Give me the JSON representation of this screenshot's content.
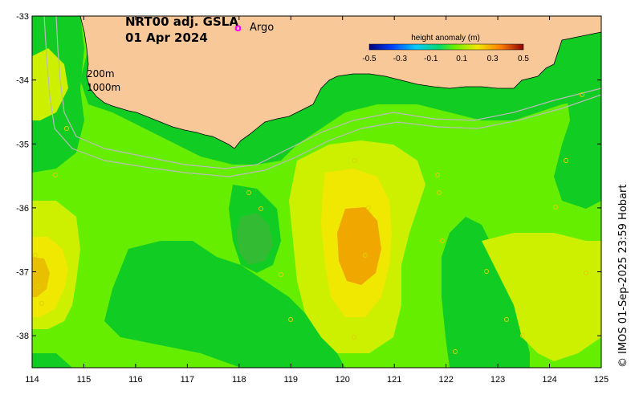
{
  "map": {
    "title_line1": "NRT00 adj. GSLA",
    "title_line2": "01 Apr 2024",
    "argo_marker": "o",
    "argo_label": "Argo",
    "isobath_200": "200m",
    "isobath_1000": "1000m",
    "credit": "© IMOS 01-Sep-2025 23:59 Hobart",
    "x_ticks": [
      "114",
      "115",
      "116",
      "117",
      "118",
      "119",
      "120",
      "121",
      "122",
      "123",
      "124",
      "125"
    ],
    "y_ticks": [
      "-33",
      "-34",
      "-35",
      "-36",
      "-37",
      "-38"
    ],
    "lon_range": [
      114,
      125
    ],
    "lat_range": [
      -38.5,
      -33
    ],
    "colorbar": {
      "title": "height anomaly (m)",
      "ticks": [
        "-0.5",
        "-0.3",
        "-0.1",
        "0.1",
        "0.3",
        "0.5"
      ],
      "range": [
        -0.5,
        0.5
      ]
    },
    "colors": {
      "land": "#f8c898",
      "light_green": "#66ee00",
      "green": "#11cc22",
      "dark_green": "#009944",
      "yellow_green": "#ccf000",
      "yellow": "#f0e800",
      "orange": "#f0a800",
      "argo": "#ff00ff",
      "isobath": "#bbbbbb"
    }
  }
}
